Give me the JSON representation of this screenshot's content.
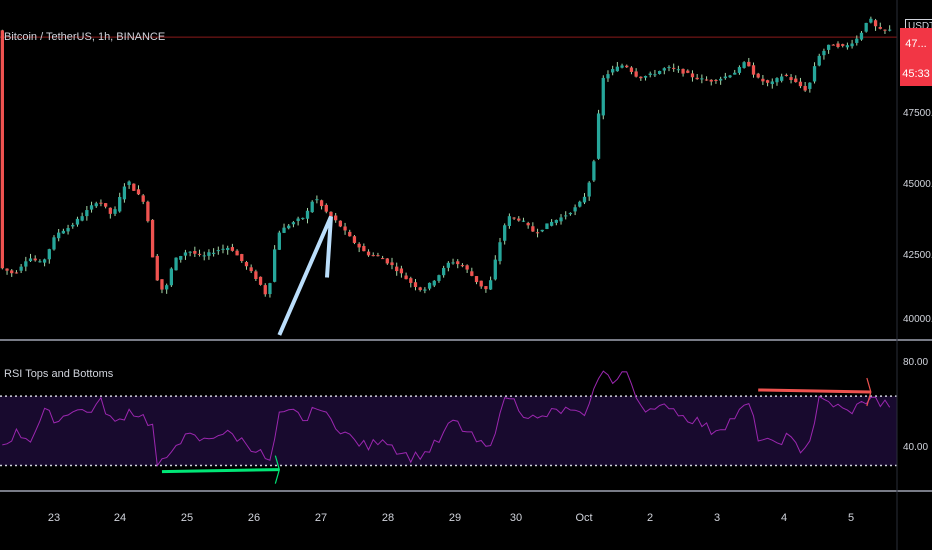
{
  "chart_data": [
    {
      "type": "candlestick",
      "title": "Bitcoin / TetherUS, 1h, BINANCE",
      "currency_label": "USDT",
      "last_price_badge": {
        "price": "47... ",
        "countdown": "45:33"
      },
      "ylim": [
        40000,
        49600
      ],
      "y_ticks": [
        "40000.00",
        "42500.00",
        "45000.00",
        "47500.00"
      ],
      "x_ticks": [
        "23",
        "24",
        "25",
        "26",
        "27",
        "28",
        "29",
        "30",
        "Oct",
        "2",
        "3",
        "4",
        "5"
      ],
      "reference_line": 48800,
      "colors": {
        "up": "#26a69a",
        "down": "#ef5350",
        "wick": "#a5d6a7",
        "annotation": "#bbdefb",
        "ref_line": "#8b1a1a"
      },
      "price_path": [
        [
          0,
          42000
        ],
        [
          3,
          41800
        ],
        [
          6,
          42300
        ],
        [
          9,
          42100
        ],
        [
          12,
          43000
        ],
        [
          15,
          43200
        ],
        [
          18,
          43600
        ],
        [
          21,
          44000
        ],
        [
          24,
          43500
        ],
        [
          27,
          44600
        ],
        [
          29,
          44200
        ],
        [
          31,
          43900
        ],
        [
          33,
          41800
        ],
        [
          35,
          41200
        ],
        [
          37,
          42200
        ],
        [
          40,
          42500
        ],
        [
          43,
          42300
        ],
        [
          46,
          42500
        ],
        [
          49,
          42600
        ],
        [
          52,
          42100
        ],
        [
          55,
          41600
        ],
        [
          57,
          41100
        ],
        [
          59,
          43000
        ],
        [
          62,
          43300
        ],
        [
          65,
          43500
        ],
        [
          67,
          44100
        ],
        [
          69,
          43700
        ],
        [
          72,
          43300
        ],
        [
          75,
          42800
        ],
        [
          78,
          42400
        ],
        [
          81,
          42300
        ],
        [
          84,
          42000
        ],
        [
          87,
          41600
        ],
        [
          90,
          41300
        ],
        [
          93,
          41700
        ],
        [
          96,
          42200
        ],
        [
          99,
          42000
        ],
        [
          102,
          41500
        ],
        [
          104,
          41300
        ],
        [
          106,
          42500
        ],
        [
          108,
          43500
        ],
        [
          111,
          43400
        ],
        [
          114,
          43000
        ],
        [
          117,
          43300
        ],
        [
          120,
          43500
        ],
        [
          123,
          43800
        ],
        [
          125,
          44200
        ],
        [
          127,
          45500
        ],
        [
          128,
          47500
        ],
        [
          130,
          47800
        ],
        [
          133,
          48000
        ],
        [
          136,
          47600
        ],
        [
          139,
          47700
        ],
        [
          142,
          47900
        ],
        [
          145,
          47800
        ],
        [
          148,
          47600
        ],
        [
          151,
          47500
        ],
        [
          154,
          47600
        ],
        [
          157,
          47800
        ],
        [
          159,
          48100
        ],
        [
          161,
          47600
        ],
        [
          164,
          47400
        ],
        [
          167,
          47700
        ],
        [
          170,
          47400
        ],
        [
          172,
          47200
        ],
        [
          174,
          48200
        ],
        [
          177,
          48600
        ],
        [
          180,
          48500
        ],
        [
          183,
          48800
        ],
        [
          185,
          49400
        ],
        [
          187,
          49000
        ]
      ],
      "annotations": [
        {
          "name": "uptrend-arrow",
          "from": [
            59,
            40000
          ],
          "to": [
            70,
            43500
          ]
        }
      ]
    },
    {
      "type": "line",
      "title": "RSI Tops and Bottoms",
      "ylim": [
        25,
        95
      ],
      "y_ticks": [
        "80.00",
        "40.00"
      ],
      "levels": [
        70,
        36
      ],
      "colors": {
        "line": "#9c27b0",
        "band": "#180a2e",
        "levels": "#d1d4dc",
        "bottom_marker": "#00e676",
        "top_marker": "#ef5350"
      },
      "rsi_path": [
        [
          0,
          46
        ],
        [
          3,
          52
        ],
        [
          6,
          49
        ],
        [
          9,
          62
        ],
        [
          12,
          58
        ],
        [
          15,
          64
        ],
        [
          18,
          62
        ],
        [
          21,
          67
        ],
        [
          24,
          56
        ],
        [
          27,
          63
        ],
        [
          30,
          60
        ],
        [
          32,
          55
        ],
        [
          33,
          36
        ],
        [
          35,
          38
        ],
        [
          37,
          48
        ],
        [
          40,
          50
        ],
        [
          43,
          48
        ],
        [
          46,
          52
        ],
        [
          49,
          51
        ],
        [
          52,
          47
        ],
        [
          55,
          42
        ],
        [
          57,
          37
        ],
        [
          59,
          60
        ],
        [
          62,
          62
        ],
        [
          65,
          58
        ],
        [
          67,
          66
        ],
        [
          69,
          60
        ],
        [
          72,
          54
        ],
        [
          75,
          48
        ],
        [
          78,
          45
        ],
        [
          81,
          50
        ],
        [
          84,
          44
        ],
        [
          87,
          40
        ],
        [
          90,
          42
        ],
        [
          93,
          48
        ],
        [
          96,
          58
        ],
        [
          99,
          52
        ],
        [
          102,
          46
        ],
        [
          104,
          44
        ],
        [
          106,
          64
        ],
        [
          108,
          70
        ],
        [
          111,
          62
        ],
        [
          114,
          58
        ],
        [
          117,
          62
        ],
        [
          120,
          63
        ],
        [
          123,
          60
        ],
        [
          125,
          65
        ],
        [
          127,
          80
        ],
        [
          128,
          84
        ],
        [
          130,
          76
        ],
        [
          133,
          82
        ],
        [
          136,
          66
        ],
        [
          139,
          62
        ],
        [
          142,
          66
        ],
        [
          145,
          60
        ],
        [
          148,
          58
        ],
        [
          151,
          53
        ],
        [
          154,
          56
        ],
        [
          157,
          62
        ],
        [
          159,
          66
        ],
        [
          161,
          50
        ],
        [
          164,
          46
        ],
        [
          167,
          50
        ],
        [
          170,
          44
        ],
        [
          172,
          48
        ],
        [
          174,
          68
        ],
        [
          177,
          66
        ],
        [
          180,
          62
        ],
        [
          183,
          66
        ],
        [
          185,
          70
        ],
        [
          187,
          66
        ]
      ],
      "markers": [
        {
          "name": "bottom-marker",
          "from": [
            34,
            33
          ],
          "to": [
            59,
            34
          ]
        },
        {
          "name": "top-marker",
          "from": [
            161,
            73
          ],
          "to": [
            185,
            72
          ]
        }
      ]
    }
  ]
}
